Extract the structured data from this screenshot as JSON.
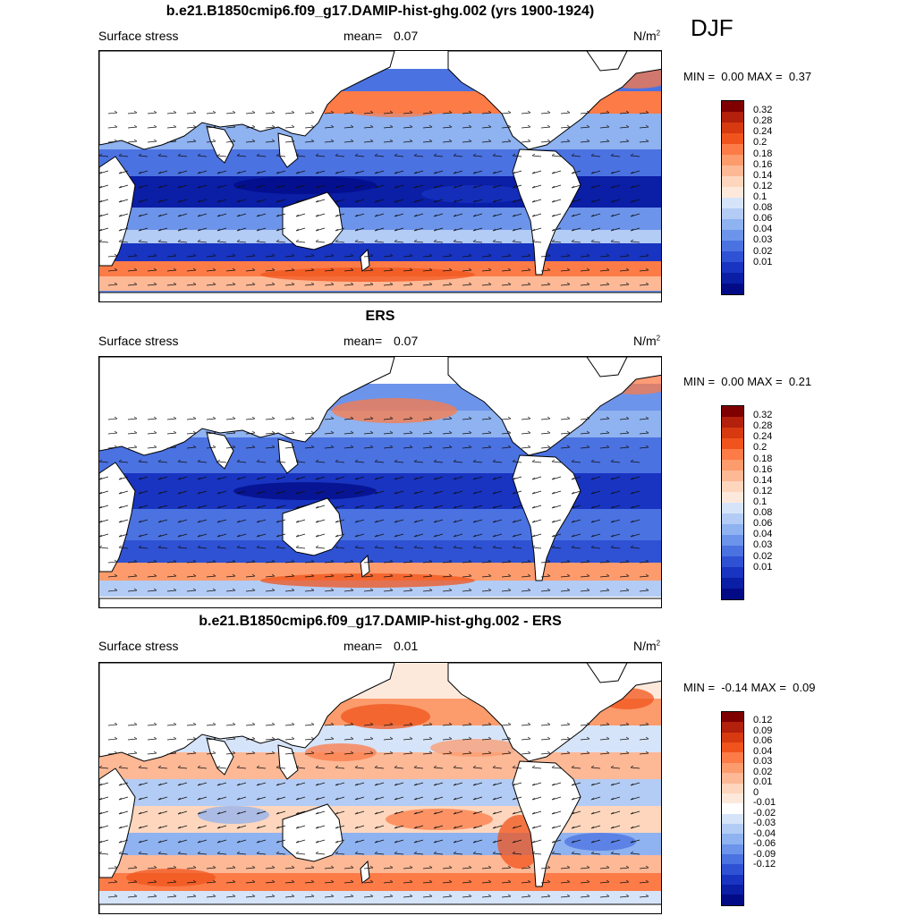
{
  "season": "DJF",
  "panels": [
    {
      "title": "b.e21.B1850cmip6.f09_g17.DAMIP-hist-ghg.002 (yrs 1900-1924)",
      "variable": "Surface stress",
      "mean_label": "mean=",
      "mean_value": "0.07",
      "units_base": "N/m",
      "units_exp": "2",
      "min_label": "MIN =",
      "min_value": "0.00",
      "max_label": "MAX =",
      "max_value": "0.37",
      "colorbar": {
        "colors": [
          "#7f0000",
          "#b3200b",
          "#d73a10",
          "#f0541c",
          "#fc7b47",
          "#fc9b6c",
          "#fdb896",
          "#fdd6bd",
          "#fde9db",
          "#d6e4fa",
          "#b3ccf5",
          "#8fb2f0",
          "#6c94ea",
          "#4b72e1",
          "#2f52d4",
          "#1834c0",
          "#0a1ea6",
          "#020b85"
        ],
        "labels": [
          "0.32",
          "0.28",
          "0.24",
          "0.2",
          "0.18",
          "0.16",
          "0.14",
          "0.12",
          "0.1",
          "0.08",
          "0.06",
          "0.04",
          "0.03",
          "0.02",
          "0.01"
        ]
      }
    },
    {
      "title": "ERS",
      "variable": "Surface stress",
      "mean_label": "mean=",
      "mean_value": "0.07",
      "units_base": "N/m",
      "units_exp": "2",
      "min_label": "MIN =",
      "min_value": "0.00",
      "max_label": "MAX =",
      "max_value": "0.21",
      "colorbar": {
        "colors": [
          "#7f0000",
          "#b3200b",
          "#d73a10",
          "#f0541c",
          "#fc7b47",
          "#fc9b6c",
          "#fdb896",
          "#fdd6bd",
          "#fde9db",
          "#d6e4fa",
          "#b3ccf5",
          "#8fb2f0",
          "#6c94ea",
          "#4b72e1",
          "#2f52d4",
          "#1834c0",
          "#0a1ea6",
          "#020b85"
        ],
        "labels": [
          "0.32",
          "0.28",
          "0.24",
          "0.2",
          "0.18",
          "0.16",
          "0.14",
          "0.12",
          "0.1",
          "0.08",
          "0.06",
          "0.04",
          "0.03",
          "0.02",
          "0.01"
        ]
      }
    },
    {
      "title": "b.e21.B1850cmip6.f09_g17.DAMIP-hist-ghg.002 - ERS",
      "variable": "Surface stress",
      "mean_label": "mean=",
      "mean_value": "0.01",
      "units_base": "N/m",
      "units_exp": "2",
      "min_label": "MIN =",
      "min_value": "-0.14",
      "max_label": "MAX =",
      "max_value": "0.09",
      "colorbar": {
        "colors": [
          "#7f0000",
          "#b3200b",
          "#d73a10",
          "#f0541c",
          "#fc7b47",
          "#fc9b6c",
          "#fdb896",
          "#fdd6bd",
          "#fde9db",
          "#ffffff",
          "#d6e4fa",
          "#b3ccf5",
          "#8fb2f0",
          "#6c94ea",
          "#4b72e1",
          "#2f52d4",
          "#1834c0",
          "#0a1ea6",
          "#020b85"
        ],
        "labels": [
          "0.12",
          "0.09",
          "0.06",
          "0.04",
          "0.03",
          "0.02",
          "0.01",
          "0",
          "-0.01",
          "-0.02",
          "-0.03",
          "-0.04",
          "-0.06",
          "-0.09",
          "-0.12"
        ]
      }
    }
  ]
}
